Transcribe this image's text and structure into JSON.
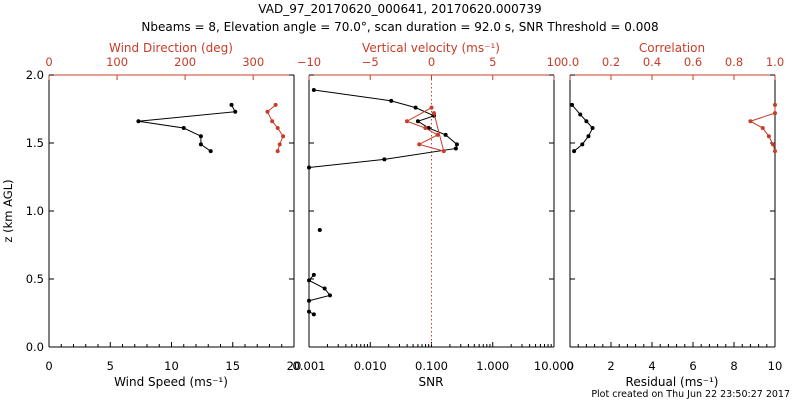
{
  "header": {
    "title": "VAD_97_20170620_000641, 20170620.000739",
    "subtitle": "Nbeams = 8, Elevation angle = 70.0°, scan duration = 92.0 s, SNR Threshold = 0.008"
  },
  "footer": {
    "plot_created": "Plot created on Thu Jun 22 23:50:27 2017"
  },
  "colors": {
    "primary": "#000000",
    "secondary": "#c83c28"
  },
  "chart_data": [
    {
      "type": "line",
      "ylabel": "z (km AGL)",
      "ylim": [
        0.0,
        2.0
      ],
      "yticks": [
        "0.0",
        "0.5",
        "1.0",
        "1.5",
        "2.0"
      ],
      "x_bottom": {
        "label": "Wind Speed (ms⁻¹)",
        "lim": [
          0,
          20
        ],
        "ticks": [
          "0",
          "5",
          "10",
          "15",
          "20"
        ]
      },
      "x_top": {
        "label": "Wind Direction (deg)",
        "lim": [
          0,
          360
        ],
        "ticks": [
          "0",
          "100",
          "200",
          "300"
        ]
      },
      "series": [
        {
          "axis": "bottom",
          "color": "#000000",
          "x": [
            14.9,
            15.2,
            7.3,
            11.0,
            12.4,
            12.4,
            13.2
          ],
          "y": [
            1.78,
            1.73,
            1.66,
            1.61,
            1.55,
            1.49,
            1.44
          ]
        },
        {
          "axis": "top",
          "color": "#c83c28",
          "x": [
            333,
            321,
            328,
            336,
            344,
            339,
            336
          ],
          "y": [
            1.78,
            1.73,
            1.66,
            1.61,
            1.55,
            1.49,
            1.44
          ]
        }
      ]
    },
    {
      "type": "line",
      "x_bottom": {
        "label": "SNR",
        "scale": "log",
        "lim": [
          0.001,
          10
        ],
        "ticks": [
          "0.001",
          "0.010",
          "0.100",
          "1.000",
          "10.000"
        ]
      },
      "x_top": {
        "label": "Vertical velocity (ms⁻¹)",
        "lim": [
          -10,
          10
        ],
        "ticks": [
          "−10",
          "−5",
          "0",
          "5",
          "10"
        ]
      },
      "reference_line": {
        "axis": "top",
        "x": 0,
        "style": "dotted"
      },
      "series": [
        {
          "axis": "bottom",
          "color": "#000000",
          "x": [
            0.0012,
            0.022,
            0.055,
            0.11,
            0.06,
            0.09,
            0.17,
            0.26,
            0.25,
            0.017,
            0.0001
          ],
          "y": [
            1.89,
            1.81,
            1.76,
            1.7,
            1.66,
            1.61,
            1.56,
            1.49,
            1.46,
            1.38,
            1.32
          ]
        },
        {
          "axis": "bottom",
          "color": "#000000",
          "x": [
            0.0012,
            0.0001,
            0.0018,
            0.0022,
            0.0001,
            0.0004,
            0.0012
          ],
          "y": [
            0.53,
            0.49,
            0.43,
            0.38,
            0.34,
            0.26,
            0.24
          ]
        },
        {
          "axis": "bottom",
          "color": "#000000",
          "marker_only": true,
          "x": [
            0.0015
          ],
          "y": [
            0.86
          ]
        },
        {
          "axis": "top",
          "color": "#c83c28",
          "x": [
            0.0,
            -2.0,
            -0.5,
            0.5,
            -1.0,
            1.0,
            0.2
          ],
          "y": [
            1.76,
            1.66,
            1.61,
            1.56,
            1.49,
            1.44,
            1.72
          ]
        }
      ]
    },
    {
      "type": "line",
      "x_bottom": {
        "label": "Residual (ms⁻¹)",
        "lim": [
          0,
          10
        ],
        "ticks": [
          "0",
          "2",
          "4",
          "6",
          "8",
          "10"
        ]
      },
      "x_top": {
        "label": "Correlation",
        "lim": [
          0.0,
          1.0
        ],
        "ticks": [
          "0.0",
          "0.2",
          "0.4",
          "0.6",
          "0.8",
          "1.0"
        ]
      },
      "series": [
        {
          "axis": "bottom",
          "color": "#000000",
          "x": [
            0.1,
            0.5,
            0.8,
            1.1,
            0.9,
            0.6,
            0.2
          ],
          "y": [
            1.78,
            1.71,
            1.66,
            1.61,
            1.55,
            1.49,
            1.44
          ]
        },
        {
          "axis": "top",
          "color": "#c83c28",
          "x": [
            1.0,
            1.0,
            0.88,
            0.94,
            0.97,
            0.99,
            1.0
          ],
          "y": [
            1.78,
            1.72,
            1.66,
            1.61,
            1.55,
            1.49,
            1.44
          ]
        }
      ]
    }
  ]
}
